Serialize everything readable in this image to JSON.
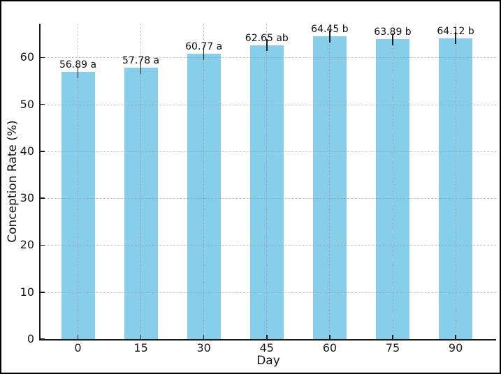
{
  "chart_data": {
    "type": "bar",
    "title": "",
    "xlabel": "Day",
    "ylabel": "Conception Rate (%)",
    "categories": [
      "0",
      "15",
      "30",
      "45",
      "60",
      "75",
      "90"
    ],
    "values": [
      56.89,
      57.78,
      60.77,
      62.65,
      64.45,
      63.89,
      64.12
    ],
    "bar_labels": [
      "56.89 a",
      "57.78 a",
      "60.77 a",
      "62.65 ab",
      "64.45 b",
      "63.89 b",
      "64.12 b"
    ],
    "yerr": 1.3,
    "yticks": [
      0,
      10,
      20,
      30,
      40,
      50,
      60
    ],
    "ytick_labels": [
      "0",
      "10",
      "20",
      "30",
      "40",
      "50",
      "60"
    ],
    "ylim": [
      0,
      67.2
    ],
    "grid": true,
    "legend": false,
    "bar_color": "#87CEEB",
    "grid_color": "#969696",
    "spine_color": "#1a1a1a",
    "text_color": "#111111"
  }
}
